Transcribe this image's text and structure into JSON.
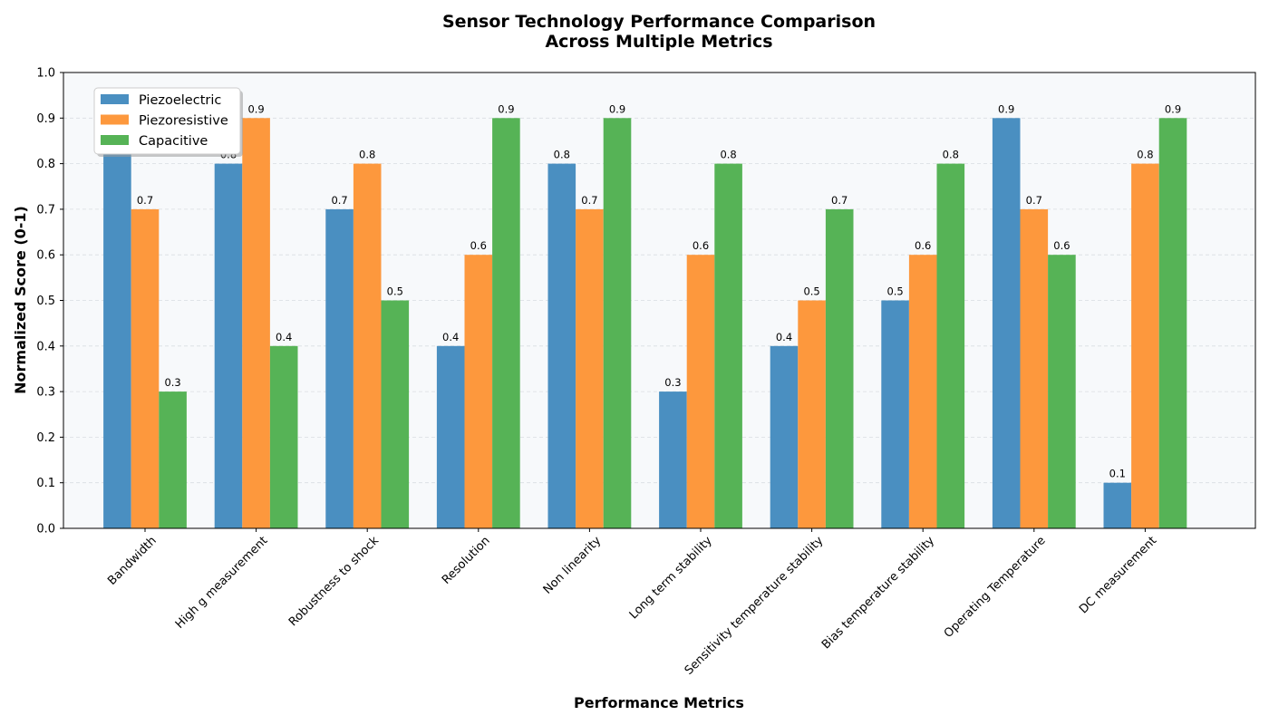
{
  "chart_data": {
    "type": "bar",
    "title_lines": [
      "Sensor Technology Performance Comparison",
      "Across Multiple Metrics"
    ],
    "xlabel": "Performance Metrics",
    "ylabel": "Normalized Score (0-1)",
    "ylim": [
      0,
      1.0
    ],
    "yticks": [
      "0.0",
      "0.1",
      "0.2",
      "0.3",
      "0.4",
      "0.5",
      "0.6",
      "0.7",
      "0.8",
      "0.9",
      "1.0"
    ],
    "grid": "horizontal dashed",
    "legend_position": "upper-left",
    "categories": [
      "Bandwidth",
      "High g measurement",
      "Robustness to shock",
      "Resolution",
      "Non linearity",
      "Long term stability",
      "Sensitivity temperature stability",
      "Bias temperature stability",
      "Operating Temperature",
      "DC measurement"
    ],
    "series": [
      {
        "name": "Piezoelectric",
        "color": "#4a8fc1",
        "values": [
          0.9,
          0.8,
          0.7,
          0.4,
          0.8,
          0.3,
          0.4,
          0.5,
          0.9,
          0.1
        ]
      },
      {
        "name": "Piezoresistive",
        "color": "#fd983d",
        "values": [
          0.7,
          0.9,
          0.8,
          0.6,
          0.7,
          0.6,
          0.5,
          0.6,
          0.7,
          0.8
        ]
      },
      {
        "name": "Capacitive",
        "color": "#56b356",
        "values": [
          0.3,
          0.4,
          0.5,
          0.9,
          0.9,
          0.8,
          0.7,
          0.8,
          0.6,
          0.9
        ]
      }
    ]
  }
}
